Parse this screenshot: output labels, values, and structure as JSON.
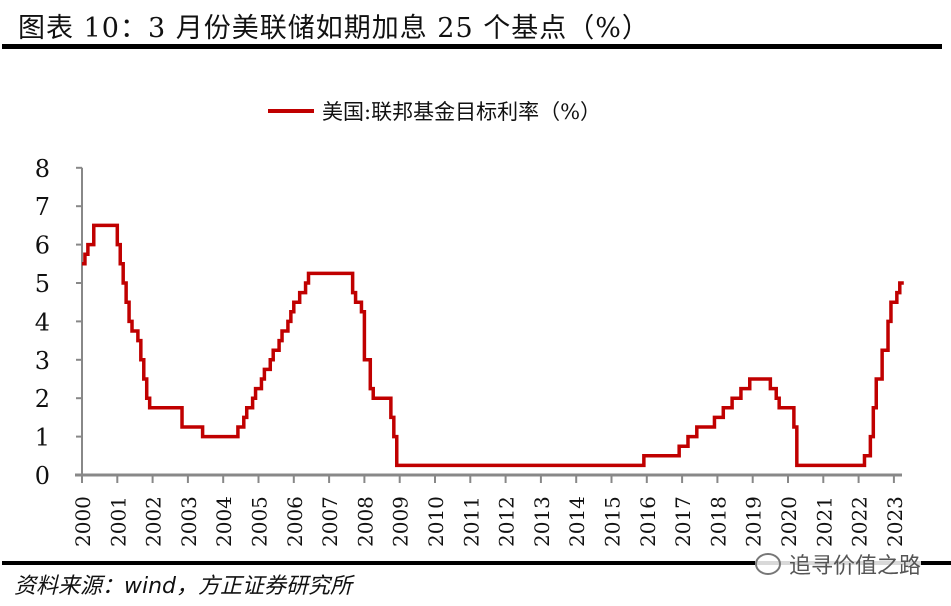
{
  "title": "图表 10：3 月份美联储如期加息 25 个基点（%）",
  "source": "资料来源：wind，方正证券研究所",
  "watermark": "追寻价值之路",
  "chart_data": {
    "type": "line",
    "title": "",
    "xlabel": "",
    "ylabel": "",
    "ylim": [
      0,
      8
    ],
    "yticks": [
      "0",
      "1",
      "2",
      "3",
      "4",
      "5",
      "6",
      "7",
      "8"
    ],
    "xticks": [
      "2000",
      "2001",
      "2002",
      "2003",
      "2004",
      "2005",
      "2006",
      "2007",
      "2008",
      "2009",
      "2010",
      "2011",
      "2012",
      "2013",
      "2014",
      "2015",
      "2016",
      "2017",
      "2018",
      "2019",
      "2020",
      "2021",
      "2022",
      "2023"
    ],
    "xlim": [
      "2000-01",
      "2023-03"
    ],
    "grid": false,
    "legend_position": "top",
    "line_style": "step",
    "color": "#c00000",
    "series": [
      {
        "name": "美国:联邦基金目标利率（%）",
        "points": [
          [
            "2000-01",
            5.5
          ],
          [
            "2000-02",
            5.75
          ],
          [
            "2000-03",
            6.0
          ],
          [
            "2000-05",
            6.5
          ],
          [
            "2001-01",
            6.0
          ],
          [
            "2001-02",
            5.5
          ],
          [
            "2001-03",
            5.0
          ],
          [
            "2001-04",
            4.5
          ],
          [
            "2001-05",
            4.0
          ],
          [
            "2001-06",
            3.75
          ],
          [
            "2001-08",
            3.5
          ],
          [
            "2001-09",
            3.0
          ],
          [
            "2001-10",
            2.5
          ],
          [
            "2001-11",
            2.0
          ],
          [
            "2001-12",
            1.75
          ],
          [
            "2002-11",
            1.25
          ],
          [
            "2003-06",
            1.0
          ],
          [
            "2004-06",
            1.25
          ],
          [
            "2004-08",
            1.5
          ],
          [
            "2004-09",
            1.75
          ],
          [
            "2004-11",
            2.0
          ],
          [
            "2004-12",
            2.25
          ],
          [
            "2005-02",
            2.5
          ],
          [
            "2005-03",
            2.75
          ],
          [
            "2005-05",
            3.0
          ],
          [
            "2005-06",
            3.25
          ],
          [
            "2005-08",
            3.5
          ],
          [
            "2005-09",
            3.75
          ],
          [
            "2005-11",
            4.0
          ],
          [
            "2005-12",
            4.25
          ],
          [
            "2006-01",
            4.5
          ],
          [
            "2006-03",
            4.75
          ],
          [
            "2006-05",
            5.0
          ],
          [
            "2006-06",
            5.25
          ],
          [
            "2007-09",
            4.75
          ],
          [
            "2007-10",
            4.5
          ],
          [
            "2007-12",
            4.25
          ],
          [
            "2008-01",
            3.0
          ],
          [
            "2008-03",
            2.25
          ],
          [
            "2008-04",
            2.0
          ],
          [
            "2008-10",
            1.5
          ],
          [
            "2008-11",
            1.0
          ],
          [
            "2008-12",
            0.25
          ],
          [
            "2015-12",
            0.5
          ],
          [
            "2016-12",
            0.75
          ],
          [
            "2017-03",
            1.0
          ],
          [
            "2017-06",
            1.25
          ],
          [
            "2017-12",
            1.5
          ],
          [
            "2018-03",
            1.75
          ],
          [
            "2018-06",
            2.0
          ],
          [
            "2018-09",
            2.25
          ],
          [
            "2018-12",
            2.5
          ],
          [
            "2019-07",
            2.25
          ],
          [
            "2019-09",
            2.0
          ],
          [
            "2019-10",
            1.75
          ],
          [
            "2020-03",
            1.25
          ],
          [
            "2020-04",
            0.25
          ],
          [
            "2022-03",
            0.5
          ],
          [
            "2022-05",
            1.0
          ],
          [
            "2022-06",
            1.75
          ],
          [
            "2022-07",
            2.5
          ],
          [
            "2022-09",
            3.25
          ],
          [
            "2022-11",
            4.0
          ],
          [
            "2022-12",
            4.5
          ],
          [
            "2023-02",
            4.75
          ],
          [
            "2023-03",
            5.0
          ]
        ]
      }
    ]
  }
}
